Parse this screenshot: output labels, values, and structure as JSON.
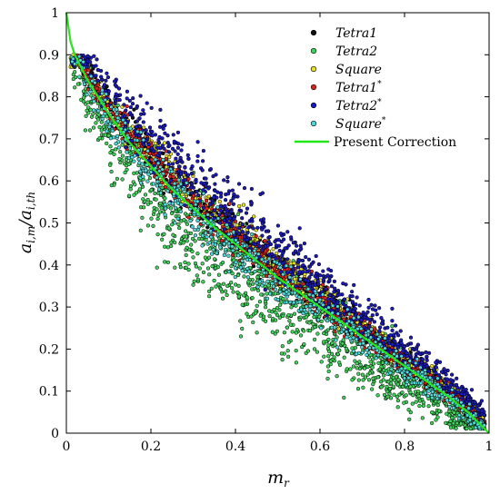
{
  "chart_data": {
    "type": "scatter",
    "xlabel": {
      "base": "m",
      "sub": "r"
    },
    "ylabel": {
      "base": "a",
      "sub": "i,m",
      "divider": "/",
      "base2": "a",
      "sub2": "i,th"
    },
    "xlim": [
      0,
      1
    ],
    "ylim": [
      0,
      1
    ],
    "x_ticks": [
      "0",
      "0.2",
      "0.4",
      "0.6",
      "0.8",
      "1"
    ],
    "y_ticks": [
      "0",
      "0.1",
      "0.2",
      "0.3",
      "0.4",
      "0.5",
      "0.6",
      "0.7",
      "0.8",
      "0.9",
      "1"
    ],
    "grid": false,
    "legend_position": "top-right",
    "series": [
      {
        "name": "Tetra1",
        "name_sup": "",
        "italic": true,
        "marker": "dot",
        "color": "#111111",
        "n_points": 700,
        "spread": 0.025,
        "offset": 0.025
      },
      {
        "name": "Tetra2",
        "name_sup": "",
        "italic": true,
        "marker": "dot",
        "color": "#3fd35a",
        "n_points": 1300,
        "spread": 0.06,
        "offset": -0.06
      },
      {
        "name": "Square",
        "name_sup": "",
        "italic": true,
        "marker": "dot",
        "color": "#e6e21c",
        "n_points": 700,
        "spread": 0.025,
        "offset": 0.035
      },
      {
        "name": "Tetra1",
        "name_sup": "*",
        "italic": true,
        "marker": "dot",
        "color": "#e0211c",
        "n_points": 700,
        "spread": 0.025,
        "offset": 0.02
      },
      {
        "name": "Tetra2",
        "name_sup": "*",
        "italic": true,
        "marker": "dot",
        "color": "#1a1abf",
        "n_points": 900,
        "spread": 0.04,
        "offset": 0.07
      },
      {
        "name": "Square",
        "name_sup": "*",
        "italic": true,
        "marker": "dot",
        "color": "#4fd8d8",
        "n_points": 700,
        "spread": 0.03,
        "offset": -0.01
      },
      {
        "name": "Present Correction",
        "name_sup": "",
        "italic": false,
        "marker": "line",
        "color": "#22e81a",
        "x": [
          0,
          0.01,
          0.02,
          0.05,
          0.1,
          0.15,
          0.2,
          0.25,
          0.3,
          0.35,
          0.4,
          0.45,
          0.5,
          0.55,
          0.6,
          0.65,
          0.7,
          0.75,
          0.8,
          0.85,
          0.9,
          0.95,
          1.0
        ],
        "y": [
          1.0,
          0.93,
          0.9,
          0.84,
          0.76,
          0.69,
          0.635,
          0.58,
          0.535,
          0.49,
          0.45,
          0.41,
          0.37,
          0.335,
          0.3,
          0.265,
          0.23,
          0.195,
          0.16,
          0.125,
          0.09,
          0.05,
          0.0
        ]
      }
    ]
  }
}
